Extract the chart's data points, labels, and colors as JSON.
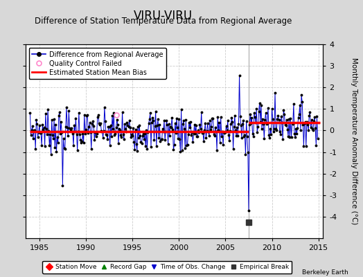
{
  "title": "VIRU-VIRU",
  "subtitle": "Difference of Station Temperature Data from Regional Average",
  "ylabel": "Monthly Temperature Anomaly Difference (°C)",
  "xlabel_years": [
    1985,
    1990,
    1995,
    2000,
    2005,
    2010,
    2015
  ],
  "ylim": [
    -5,
    4
  ],
  "yticks": [
    -4,
    -3,
    -2,
    -1,
    0,
    1,
    2,
    3,
    4
  ],
  "xlim": [
    1983.5,
    2015.5
  ],
  "background_color": "#d8d8d8",
  "plot_bg_color": "#ffffff",
  "line_color": "#0000cc",
  "dot_color": "#000000",
  "bias_color": "#ff0000",
  "bias_before": -0.05,
  "bias_after": 0.38,
  "break_year": 2007.5,
  "break_marker_x": 2007.5,
  "break_marker_y": -4.25,
  "vertical_line_x": 2007.5,
  "title_fontsize": 12,
  "subtitle_fontsize": 8.5,
  "tick_fontsize": 8,
  "watermark": "Berkeley Earth",
  "years_start": 1984.0,
  "years_end": 2014.92,
  "n_months": 372,
  "outlier_1987_idx": 42,
  "outlier_1987_val": -2.55,
  "outlier_2006_up_idx": 270,
  "outlier_2006_up_val": 2.55,
  "outlier_2007_down_idx": 282,
  "outlier_2007_down_val": -3.7,
  "qc_x": 1993.25,
  "qc_y": 0.72
}
